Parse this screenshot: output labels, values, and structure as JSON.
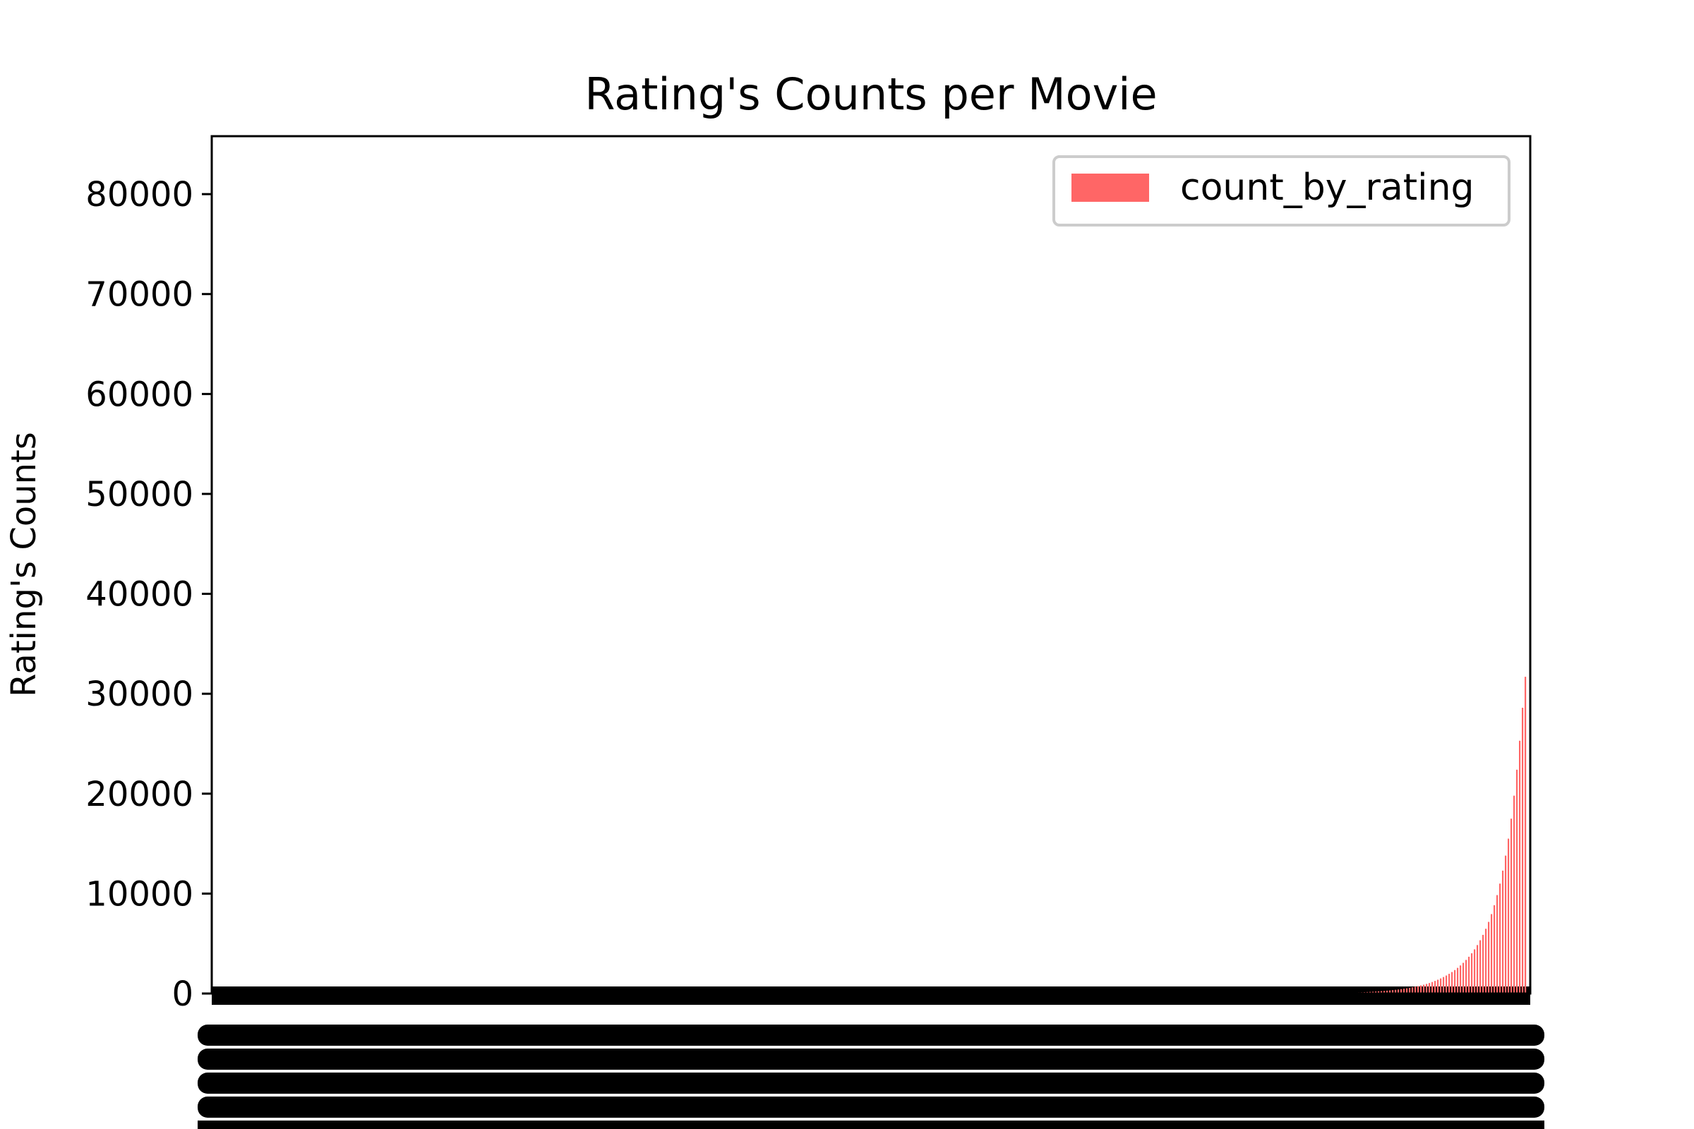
{
  "chart_data": {
    "type": "bar",
    "title": "Rating's Counts per Movie",
    "xlabel": "",
    "ylabel": "Rating's Counts",
    "ylim": [
      0,
      85800
    ],
    "yticks": [
      0,
      10000,
      20000,
      30000,
      40000,
      50000,
      60000,
      70000,
      80000
    ],
    "grid": false,
    "legend_position": "top-right",
    "colors": {
      "bar": "#ff6666",
      "legend_patch": "#ff6666",
      "axis": "#000000"
    },
    "series": [
      {
        "name": "count_by_rating",
        "sorted": "ascending",
        "values_tail": [
          50,
          60,
          70,
          80,
          90,
          100,
          110,
          120,
          135,
          150,
          165,
          180,
          200,
          220,
          240,
          260,
          285,
          310,
          340,
          370,
          400,
          440,
          480,
          520,
          570,
          620,
          680,
          740,
          810,
          880,
          960,
          1050,
          1150,
          1260,
          1380,
          1510,
          1650,
          1800,
          1970,
          2150,
          2350,
          2570,
          2810,
          3070,
          3360,
          3680,
          4030,
          4420,
          4850,
          5330,
          5870,
          6480,
          7170,
          7950,
          8840,
          9850,
          11000,
          12300,
          13800,
          15500,
          17500,
          19800,
          22400,
          25300,
          28600,
          31700
        ]
      }
    ]
  }
}
